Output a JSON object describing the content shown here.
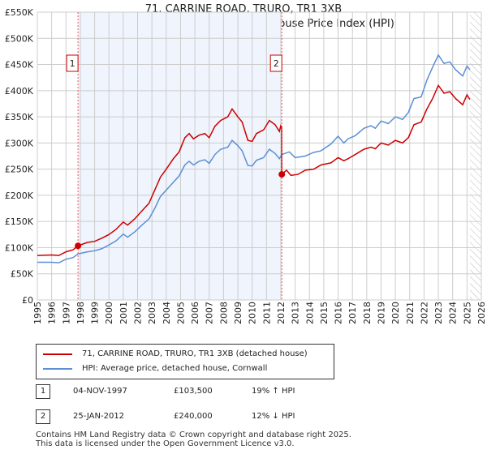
{
  "title": "71, CARRINE ROAD, TRURO, TR1 3XB",
  "subtitle": "Price paid vs. HM Land Registry's House Price Index (HPI)",
  "chart_data": {
    "type": "line",
    "title": "71, CARRINE ROAD, TRURO, TR1 3XB",
    "subtitle": "Price paid vs. HM Land Registry's House Price Index (HPI)",
    "xlim": [
      1995,
      2026
    ],
    "ylim": [
      0,
      550000
    ],
    "xticks": [
      "1995",
      "1996",
      "1997",
      "1998",
      "1999",
      "2000",
      "2001",
      "2002",
      "2003",
      "2004",
      "2005",
      "2006",
      "2007",
      "2008",
      "2009",
      "2010",
      "2011",
      "2012",
      "2013",
      "2014",
      "2015",
      "2016",
      "2017",
      "2018",
      "2019",
      "2020",
      "2021",
      "2022",
      "2023",
      "2024",
      "2025",
      "2026"
    ],
    "yticks": [
      {
        "v": 0,
        "label": "£0"
      },
      {
        "v": 50000,
        "label": "£50K"
      },
      {
        "v": 100000,
        "label": "£100K"
      },
      {
        "v": 150000,
        "label": "£150K"
      },
      {
        "v": 200000,
        "label": "£200K"
      },
      {
        "v": 250000,
        "label": "£250K"
      },
      {
        "v": 300000,
        "label": "£300K"
      },
      {
        "v": 350000,
        "label": "£350K"
      },
      {
        "v": 400000,
        "label": "£400K"
      },
      {
        "v": 450000,
        "label": "£450K"
      },
      {
        "v": 500000,
        "label": "£500K"
      },
      {
        "v": 550000,
        "label": "£550K"
      }
    ],
    "grid": true,
    "shaded_region": [
      1997.84,
      2012.07
    ],
    "hatched_from": 2025.2,
    "series": [
      {
        "name": "71, CARRINE ROAD, TRURO, TR1 3XB (detached house)",
        "color": "#cc0000",
        "points": [
          [
            1995,
            85000
          ],
          [
            1996,
            86000
          ],
          [
            1996.5,
            85000
          ],
          [
            1997,
            92000
          ],
          [
            1997.5,
            96000
          ],
          [
            1997.84,
            103500
          ],
          [
            1998.5,
            110000
          ],
          [
            1999,
            112000
          ],
          [
            1999.5,
            118000
          ],
          [
            2000,
            125000
          ],
          [
            2000.5,
            135000
          ],
          [
            2001,
            149000
          ],
          [
            2001.3,
            143000
          ],
          [
            2001.8,
            155000
          ],
          [
            2002.3,
            170000
          ],
          [
            2002.8,
            185000
          ],
          [
            2003.2,
            210000
          ],
          [
            2003.6,
            235000
          ],
          [
            2004,
            250000
          ],
          [
            2004.5,
            270000
          ],
          [
            2004.9,
            283000
          ],
          [
            2005.3,
            310000
          ],
          [
            2005.6,
            318000
          ],
          [
            2005.9,
            308000
          ],
          [
            2006.3,
            315000
          ],
          [
            2006.7,
            318000
          ],
          [
            2007,
            310000
          ],
          [
            2007.4,
            332000
          ],
          [
            2007.8,
            343000
          ],
          [
            2008.3,
            350000
          ],
          [
            2008.6,
            365000
          ],
          [
            2009,
            350000
          ],
          [
            2009.3,
            340000
          ],
          [
            2009.7,
            305000
          ],
          [
            2010,
            303000
          ],
          [
            2010.3,
            318000
          ],
          [
            2010.8,
            325000
          ],
          [
            2011.2,
            343000
          ],
          [
            2011.6,
            335000
          ],
          [
            2011.9,
            322000
          ],
          [
            2012,
            333000
          ],
          [
            2012.06,
            330000
          ],
          [
            2012.07,
            240000
          ],
          [
            2012.4,
            248000
          ],
          [
            2012.7,
            238000
          ],
          [
            2013.2,
            240000
          ],
          [
            2013.7,
            248000
          ],
          [
            2014.3,
            250000
          ],
          [
            2014.8,
            258000
          ],
          [
            2015.5,
            262000
          ],
          [
            2016,
            272000
          ],
          [
            2016.4,
            266000
          ],
          [
            2016.7,
            270000
          ],
          [
            2017.2,
            278000
          ],
          [
            2017.8,
            288000
          ],
          [
            2018.3,
            292000
          ],
          [
            2018.6,
            289000
          ],
          [
            2019,
            300000
          ],
          [
            2019.5,
            296000
          ],
          [
            2020,
            305000
          ],
          [
            2020.5,
            300000
          ],
          [
            2020.9,
            310000
          ],
          [
            2021.3,
            335000
          ],
          [
            2021.8,
            340000
          ],
          [
            2022.2,
            365000
          ],
          [
            2022.6,
            385000
          ],
          [
            2023,
            410000
          ],
          [
            2023.4,
            395000
          ],
          [
            2023.8,
            398000
          ],
          [
            2024.2,
            385000
          ],
          [
            2024.7,
            373000
          ],
          [
            2025,
            392000
          ],
          [
            2025.2,
            383000
          ]
        ]
      },
      {
        "name": "HPI: Average price, detached house, Cornwall",
        "color": "#5b8fd6",
        "points": [
          [
            1995,
            72000
          ],
          [
            1996,
            72000
          ],
          [
            1996.5,
            71000
          ],
          [
            1997,
            78000
          ],
          [
            1997.5,
            81000
          ],
          [
            1997.84,
            88000
          ],
          [
            1998.5,
            92000
          ],
          [
            1999,
            94000
          ],
          [
            1999.5,
            98000
          ],
          [
            2000,
            105000
          ],
          [
            2000.5,
            113000
          ],
          [
            2001,
            126000
          ],
          [
            2001.3,
            120000
          ],
          [
            2001.8,
            130000
          ],
          [
            2002.3,
            143000
          ],
          [
            2002.8,
            155000
          ],
          [
            2003.2,
            175000
          ],
          [
            2003.6,
            198000
          ],
          [
            2004,
            210000
          ],
          [
            2004.5,
            225000
          ],
          [
            2004.9,
            237000
          ],
          [
            2005.3,
            258000
          ],
          [
            2005.6,
            265000
          ],
          [
            2005.9,
            258000
          ],
          [
            2006.3,
            265000
          ],
          [
            2006.7,
            268000
          ],
          [
            2007,
            261000
          ],
          [
            2007.4,
            278000
          ],
          [
            2007.8,
            288000
          ],
          [
            2008.3,
            292000
          ],
          [
            2008.6,
            305000
          ],
          [
            2009,
            295000
          ],
          [
            2009.3,
            285000
          ],
          [
            2009.7,
            257000
          ],
          [
            2010,
            256000
          ],
          [
            2010.3,
            267000
          ],
          [
            2010.8,
            272000
          ],
          [
            2011.2,
            288000
          ],
          [
            2011.6,
            280000
          ],
          [
            2011.9,
            270000
          ],
          [
            2012.07,
            278000
          ],
          [
            2012.6,
            283000
          ],
          [
            2013,
            272000
          ],
          [
            2013.7,
            275000
          ],
          [
            2014.3,
            282000
          ],
          [
            2014.8,
            285000
          ],
          [
            2015.5,
            298000
          ],
          [
            2016,
            313000
          ],
          [
            2016.4,
            300000
          ],
          [
            2016.7,
            308000
          ],
          [
            2017.2,
            314000
          ],
          [
            2017.8,
            328000
          ],
          [
            2018.3,
            333000
          ],
          [
            2018.6,
            328000
          ],
          [
            2019,
            342000
          ],
          [
            2019.5,
            337000
          ],
          [
            2020,
            350000
          ],
          [
            2020.5,
            345000
          ],
          [
            2020.9,
            358000
          ],
          [
            2021.3,
            385000
          ],
          [
            2021.8,
            388000
          ],
          [
            2022.2,
            420000
          ],
          [
            2022.6,
            445000
          ],
          [
            2023,
            468000
          ],
          [
            2023.4,
            452000
          ],
          [
            2023.8,
            455000
          ],
          [
            2024.2,
            440000
          ],
          [
            2024.7,
            428000
          ],
          [
            2025,
            447000
          ],
          [
            2025.2,
            440000
          ]
        ]
      }
    ],
    "annotations": [
      {
        "label": "1",
        "x": 1997.84,
        "y": 103500
      },
      {
        "label": "2",
        "x": 2012.07,
        "y": 240000
      }
    ]
  },
  "legend": {
    "red": "71, CARRINE ROAD, TRURO, TR1 3XB (detached house)",
    "blue": "HPI: Average price, detached house, Cornwall"
  },
  "transactions": [
    {
      "num": "1",
      "date": "04-NOV-1997",
      "price": "£103,500",
      "hpi": "19% ↑ HPI"
    },
    {
      "num": "2",
      "date": "25-JAN-2012",
      "price": "£240,000",
      "hpi": "12% ↓ HPI"
    }
  ],
  "footer": [
    "Contains HM Land Registry data © Crown copyright and database right 2025.",
    "This data is licensed under the Open Government Licence v3.0."
  ]
}
